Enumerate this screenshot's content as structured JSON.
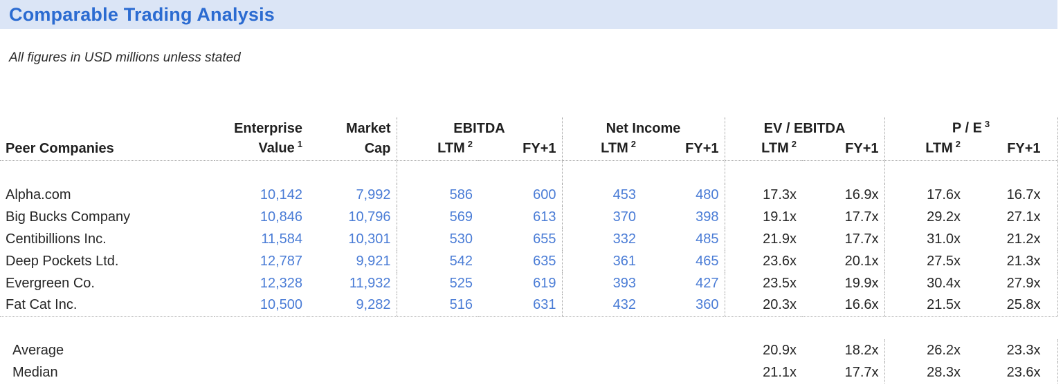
{
  "page": {
    "title": "Comparable Trading Analysis",
    "subtitle": "All figures in USD millions unless stated"
  },
  "colors": {
    "title_blue": "#2B6BD1",
    "band_bg": "#DBE5F6",
    "value_blue": "#4A7CD6",
    "text_dark": "#262626",
    "line_gray": "#A0A0A0"
  },
  "footnotes": {
    "one": "1",
    "two": "2",
    "three": "3"
  },
  "header": {
    "row_label": "Peer Companies",
    "enterprise_l1": "Enterprise",
    "enterprise_l2": "Value",
    "market_l1": "Market",
    "market_l2": "Cap",
    "group_ebitda": "EBITDA",
    "group_net_income": "Net Income",
    "group_ev_ebitda": "EV / EBITDA",
    "group_pe": "P / E",
    "sub_ltm": "LTM",
    "sub_fy1": "FY+1"
  },
  "companies": [
    {
      "name": "Alpha.com",
      "ev": "10,142",
      "mcap": "7,992",
      "ebitda_ltm": "586",
      "ebitda_fy1": "600",
      "ni_ltm": "453",
      "ni_fy1": "480",
      "ev_ebitda_ltm": "17.3x",
      "ev_ebitda_fy1": "16.9x",
      "pe_ltm": "17.6x",
      "pe_fy1": "16.7x"
    },
    {
      "name": "Big Bucks Company",
      "ev": "10,846",
      "mcap": "10,796",
      "ebitda_ltm": "569",
      "ebitda_fy1": "613",
      "ni_ltm": "370",
      "ni_fy1": "398",
      "ev_ebitda_ltm": "19.1x",
      "ev_ebitda_fy1": "17.7x",
      "pe_ltm": "29.2x",
      "pe_fy1": "27.1x"
    },
    {
      "name": "Centibillions Inc.",
      "ev": "11,584",
      "mcap": "10,301",
      "ebitda_ltm": "530",
      "ebitda_fy1": "655",
      "ni_ltm": "332",
      "ni_fy1": "485",
      "ev_ebitda_ltm": "21.9x",
      "ev_ebitda_fy1": "17.7x",
      "pe_ltm": "31.0x",
      "pe_fy1": "21.2x"
    },
    {
      "name": "Deep Pockets Ltd.",
      "ev": "12,787",
      "mcap": "9,921",
      "ebitda_ltm": "542",
      "ebitda_fy1": "635",
      "ni_ltm": "361",
      "ni_fy1": "465",
      "ev_ebitda_ltm": "23.6x",
      "ev_ebitda_fy1": "20.1x",
      "pe_ltm": "27.5x",
      "pe_fy1": "21.3x"
    },
    {
      "name": "Evergreen Co.",
      "ev": "12,328",
      "mcap": "11,932",
      "ebitda_ltm": "525",
      "ebitda_fy1": "619",
      "ni_ltm": "393",
      "ni_fy1": "427",
      "ev_ebitda_ltm": "23.5x",
      "ev_ebitda_fy1": "19.9x",
      "pe_ltm": "30.4x",
      "pe_fy1": "27.9x"
    },
    {
      "name": "Fat Cat Inc.",
      "ev": "10,500",
      "mcap": "9,282",
      "ebitda_ltm": "516",
      "ebitda_fy1": "631",
      "ni_ltm": "432",
      "ni_fy1": "360",
      "ev_ebitda_ltm": "20.3x",
      "ev_ebitda_fy1": "16.6x",
      "pe_ltm": "21.5x",
      "pe_fy1": "25.8x"
    }
  ],
  "summary": [
    {
      "name": "Average",
      "ev_ebitda_ltm": "20.9x",
      "ev_ebitda_fy1": "18.2x",
      "pe_ltm": "26.2x",
      "pe_fy1": "23.3x"
    },
    {
      "name": "Median",
      "ev_ebitda_ltm": "21.1x",
      "ev_ebitda_fy1": "17.7x",
      "pe_ltm": "28.3x",
      "pe_fy1": "23.6x"
    }
  ]
}
